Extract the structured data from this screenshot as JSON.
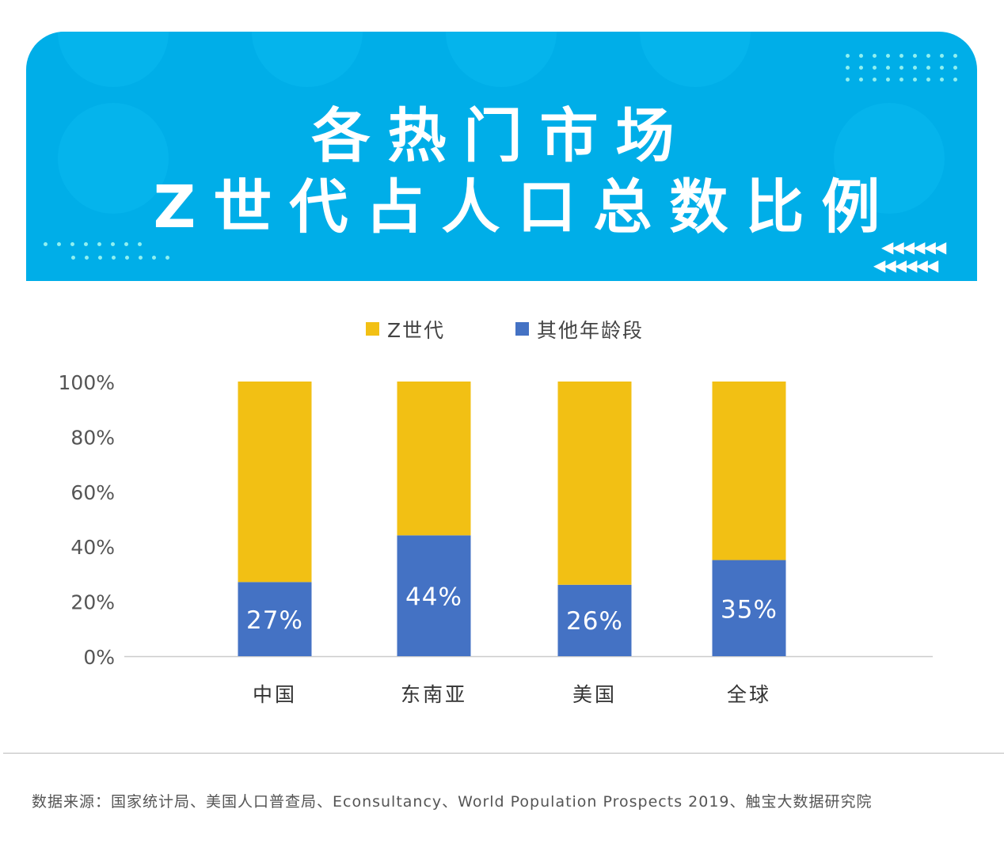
{
  "header": {
    "title_line1": "各热门市场",
    "title_line2": "Z世代占人口总数比例",
    "background_color": "#00aee8"
  },
  "chart_data": {
    "type": "bar",
    "stacked": true,
    "categories": [
      "中国",
      "东南亚",
      "美国",
      "全球"
    ],
    "series": [
      {
        "name": "Z世代",
        "color": "#f2c014",
        "values": [
          73,
          56,
          74,
          65
        ]
      },
      {
        "name": "其他年龄段",
        "color": "#4472c4",
        "values": [
          27,
          44,
          26,
          35
        ]
      }
    ],
    "data_labels": [
      "27%",
      "44%",
      "26%",
      "35%"
    ],
    "y_ticks": [
      "0%",
      "20%",
      "40%",
      "60%",
      "80%",
      "100%"
    ],
    "ylim": [
      0,
      100
    ],
    "legend_position": "top",
    "grid": false
  },
  "footer": {
    "source": "数据来源：国家统计局、美国人口普查局、Econsultancy、World Population Prospects 2019、触宝大数据研究院"
  }
}
